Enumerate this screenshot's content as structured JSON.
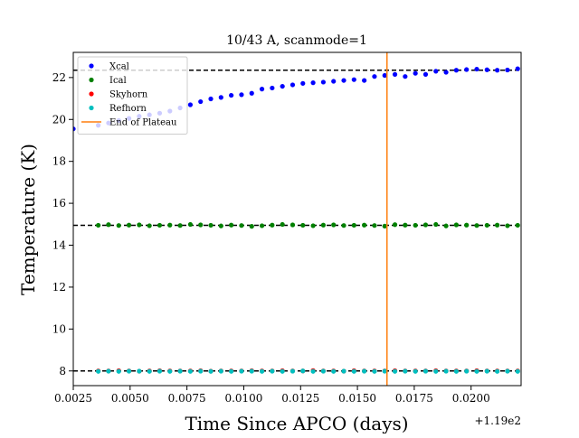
{
  "chart_data": {
    "type": "scatter",
    "title": "10/43 A, scanmode=1",
    "xlabel": "Time Since APCO (days)",
    "ylabel": "Temperature (K)",
    "x_offset_label": "+1.19e2",
    "xlim": [
      0.0025,
      0.0222
    ],
    "ylim": [
      7.3,
      23.2
    ],
    "x_ticks": [
      0.0025,
      0.005,
      0.0075,
      0.01,
      0.0125,
      0.015,
      0.0175,
      0.02
    ],
    "x_tick_labels": [
      "0.0025",
      "0.0050",
      "0.0075",
      "0.0100",
      "0.0125",
      "0.0150",
      "0.0175",
      "0.0200"
    ],
    "y_ticks": [
      8,
      10,
      12,
      14,
      16,
      18,
      20,
      22
    ],
    "y_tick_labels": [
      "8",
      "10",
      "12",
      "14",
      "16",
      "18",
      "20",
      "22"
    ],
    "grid": false,
    "legend_position": "upper-left",
    "reference_lines": [
      {
        "kind": "hline",
        "y": 22.35,
        "color": "#000000",
        "style": "dashed"
      },
      {
        "kind": "hline",
        "y": 14.95,
        "color": "#000000",
        "style": "dashed"
      },
      {
        "kind": "hline",
        "y": 8.0,
        "color": "#000000",
        "style": "dashed"
      },
      {
        "kind": "vline",
        "x": 0.0163,
        "color": "#ff7f0e",
        "style": "solid",
        "series_name": "End of Plateau"
      }
    ],
    "series": [
      {
        "name": "Xcal",
        "color": "#0000ff",
        "x": [
          0.0025,
          0.0036,
          0.00405,
          0.0045,
          0.00495,
          0.0054,
          0.00585,
          0.0063,
          0.00675,
          0.0072,
          0.00765,
          0.0081,
          0.00855,
          0.009,
          0.00945,
          0.0099,
          0.01035,
          0.0108,
          0.01125,
          0.0117,
          0.01215,
          0.0126,
          0.01305,
          0.0135,
          0.01395,
          0.0144,
          0.01485,
          0.0153,
          0.01575,
          0.0162,
          0.01665,
          0.0171,
          0.01755,
          0.018,
          0.01845,
          0.0189,
          0.01935,
          0.0198,
          0.02025,
          0.0207,
          0.02115,
          0.0216,
          0.02205
        ],
        "y": [
          19.55,
          19.72,
          19.83,
          19.95,
          20.05,
          20.15,
          20.22,
          20.3,
          20.4,
          20.55,
          20.7,
          20.85,
          20.98,
          21.05,
          21.15,
          21.18,
          21.25,
          21.45,
          21.5,
          21.58,
          21.65,
          21.72,
          21.75,
          21.78,
          21.82,
          21.86,
          21.9,
          21.86,
          22.05,
          22.1,
          22.15,
          22.05,
          22.2,
          22.15,
          22.3,
          22.25,
          22.35,
          22.38,
          22.4,
          22.37,
          22.35,
          22.36,
          22.42
        ]
      },
      {
        "name": "Ical",
        "color": "#008000",
        "x": [
          0.0036,
          0.00405,
          0.0045,
          0.00495,
          0.0054,
          0.00585,
          0.0063,
          0.00675,
          0.0072,
          0.00765,
          0.0081,
          0.00855,
          0.009,
          0.00945,
          0.0099,
          0.01035,
          0.0108,
          0.01125,
          0.0117,
          0.01215,
          0.0126,
          0.01305,
          0.0135,
          0.01395,
          0.0144,
          0.01485,
          0.0153,
          0.01575,
          0.0162,
          0.01665,
          0.0171,
          0.01755,
          0.018,
          0.01845,
          0.0189,
          0.01935,
          0.0198,
          0.02025,
          0.0207,
          0.02115,
          0.0216,
          0.02205
        ],
        "y": [
          14.95,
          14.98,
          14.94,
          14.96,
          14.97,
          14.93,
          14.95,
          14.96,
          14.94,
          14.99,
          14.97,
          14.95,
          14.92,
          14.96,
          14.94,
          14.9,
          14.93,
          14.96,
          14.99,
          14.97,
          14.95,
          14.93,
          14.96,
          14.97,
          14.94,
          14.95,
          14.96,
          14.94,
          14.91,
          14.98,
          14.96,
          14.95,
          14.97,
          14.99,
          14.92,
          14.97,
          14.96,
          14.94,
          14.95,
          14.96,
          14.93,
          14.95
        ]
      },
      {
        "name": "Skyhorn",
        "color": "#ff0000",
        "x": [
          0.0036,
          0.00405,
          0.0045,
          0.00495,
          0.0054,
          0.00585,
          0.0063,
          0.00675,
          0.0072,
          0.00765,
          0.0081,
          0.00855,
          0.009,
          0.00945,
          0.0099,
          0.01035,
          0.0108,
          0.01125,
          0.0117,
          0.01215,
          0.0126,
          0.01305,
          0.0135,
          0.01395,
          0.0144,
          0.01485,
          0.0153,
          0.01575,
          0.0162,
          0.01665,
          0.0171,
          0.01755,
          0.018,
          0.01845,
          0.0189,
          0.01935,
          0.0198,
          0.02025,
          0.0207,
          0.02115,
          0.0216,
          0.02205
        ],
        "y": [
          8.0,
          8.0,
          8.01,
          8.0,
          7.99,
          8.0,
          8.01,
          8.0,
          8.0,
          8.0,
          8.01,
          7.99,
          8.0,
          8.0,
          8.0,
          8.01,
          8.0,
          8.0,
          8.01,
          8.0,
          8.0,
          8.02,
          8.0,
          8.0,
          7.99,
          8.01,
          8.0,
          8.0,
          8.0,
          8.01,
          8.0,
          8.0,
          8.0,
          8.01,
          8.0,
          8.0,
          8.0,
          8.01,
          8.0,
          8.0,
          8.0,
          8.0
        ]
      },
      {
        "name": "Refhorn",
        "color": "#00bfbf",
        "x": [
          0.0036,
          0.00405,
          0.0045,
          0.00495,
          0.0054,
          0.00585,
          0.0063,
          0.00675,
          0.0072,
          0.00765,
          0.0081,
          0.00855,
          0.009,
          0.00945,
          0.0099,
          0.01035,
          0.0108,
          0.01125,
          0.0117,
          0.01215,
          0.0126,
          0.01305,
          0.0135,
          0.01395,
          0.0144,
          0.01485,
          0.0153,
          0.01575,
          0.0162,
          0.01665,
          0.0171,
          0.01755,
          0.018,
          0.01845,
          0.0189,
          0.01935,
          0.0198,
          0.02025,
          0.0207,
          0.02115,
          0.0216,
          0.02205
        ],
        "y": [
          7.98,
          7.99,
          7.98,
          7.99,
          7.99,
          7.98,
          7.99,
          7.98,
          7.99,
          7.98,
          7.99,
          7.98,
          7.99,
          7.98,
          7.99,
          7.99,
          7.98,
          7.99,
          7.98,
          7.99,
          8.0,
          7.98,
          7.99,
          7.98,
          7.99,
          7.98,
          7.99,
          7.98,
          7.99,
          7.98,
          7.99,
          7.98,
          7.99,
          7.98,
          7.99,
          7.98,
          7.99,
          7.98,
          7.99,
          7.98,
          7.99,
          7.98
        ]
      }
    ]
  }
}
